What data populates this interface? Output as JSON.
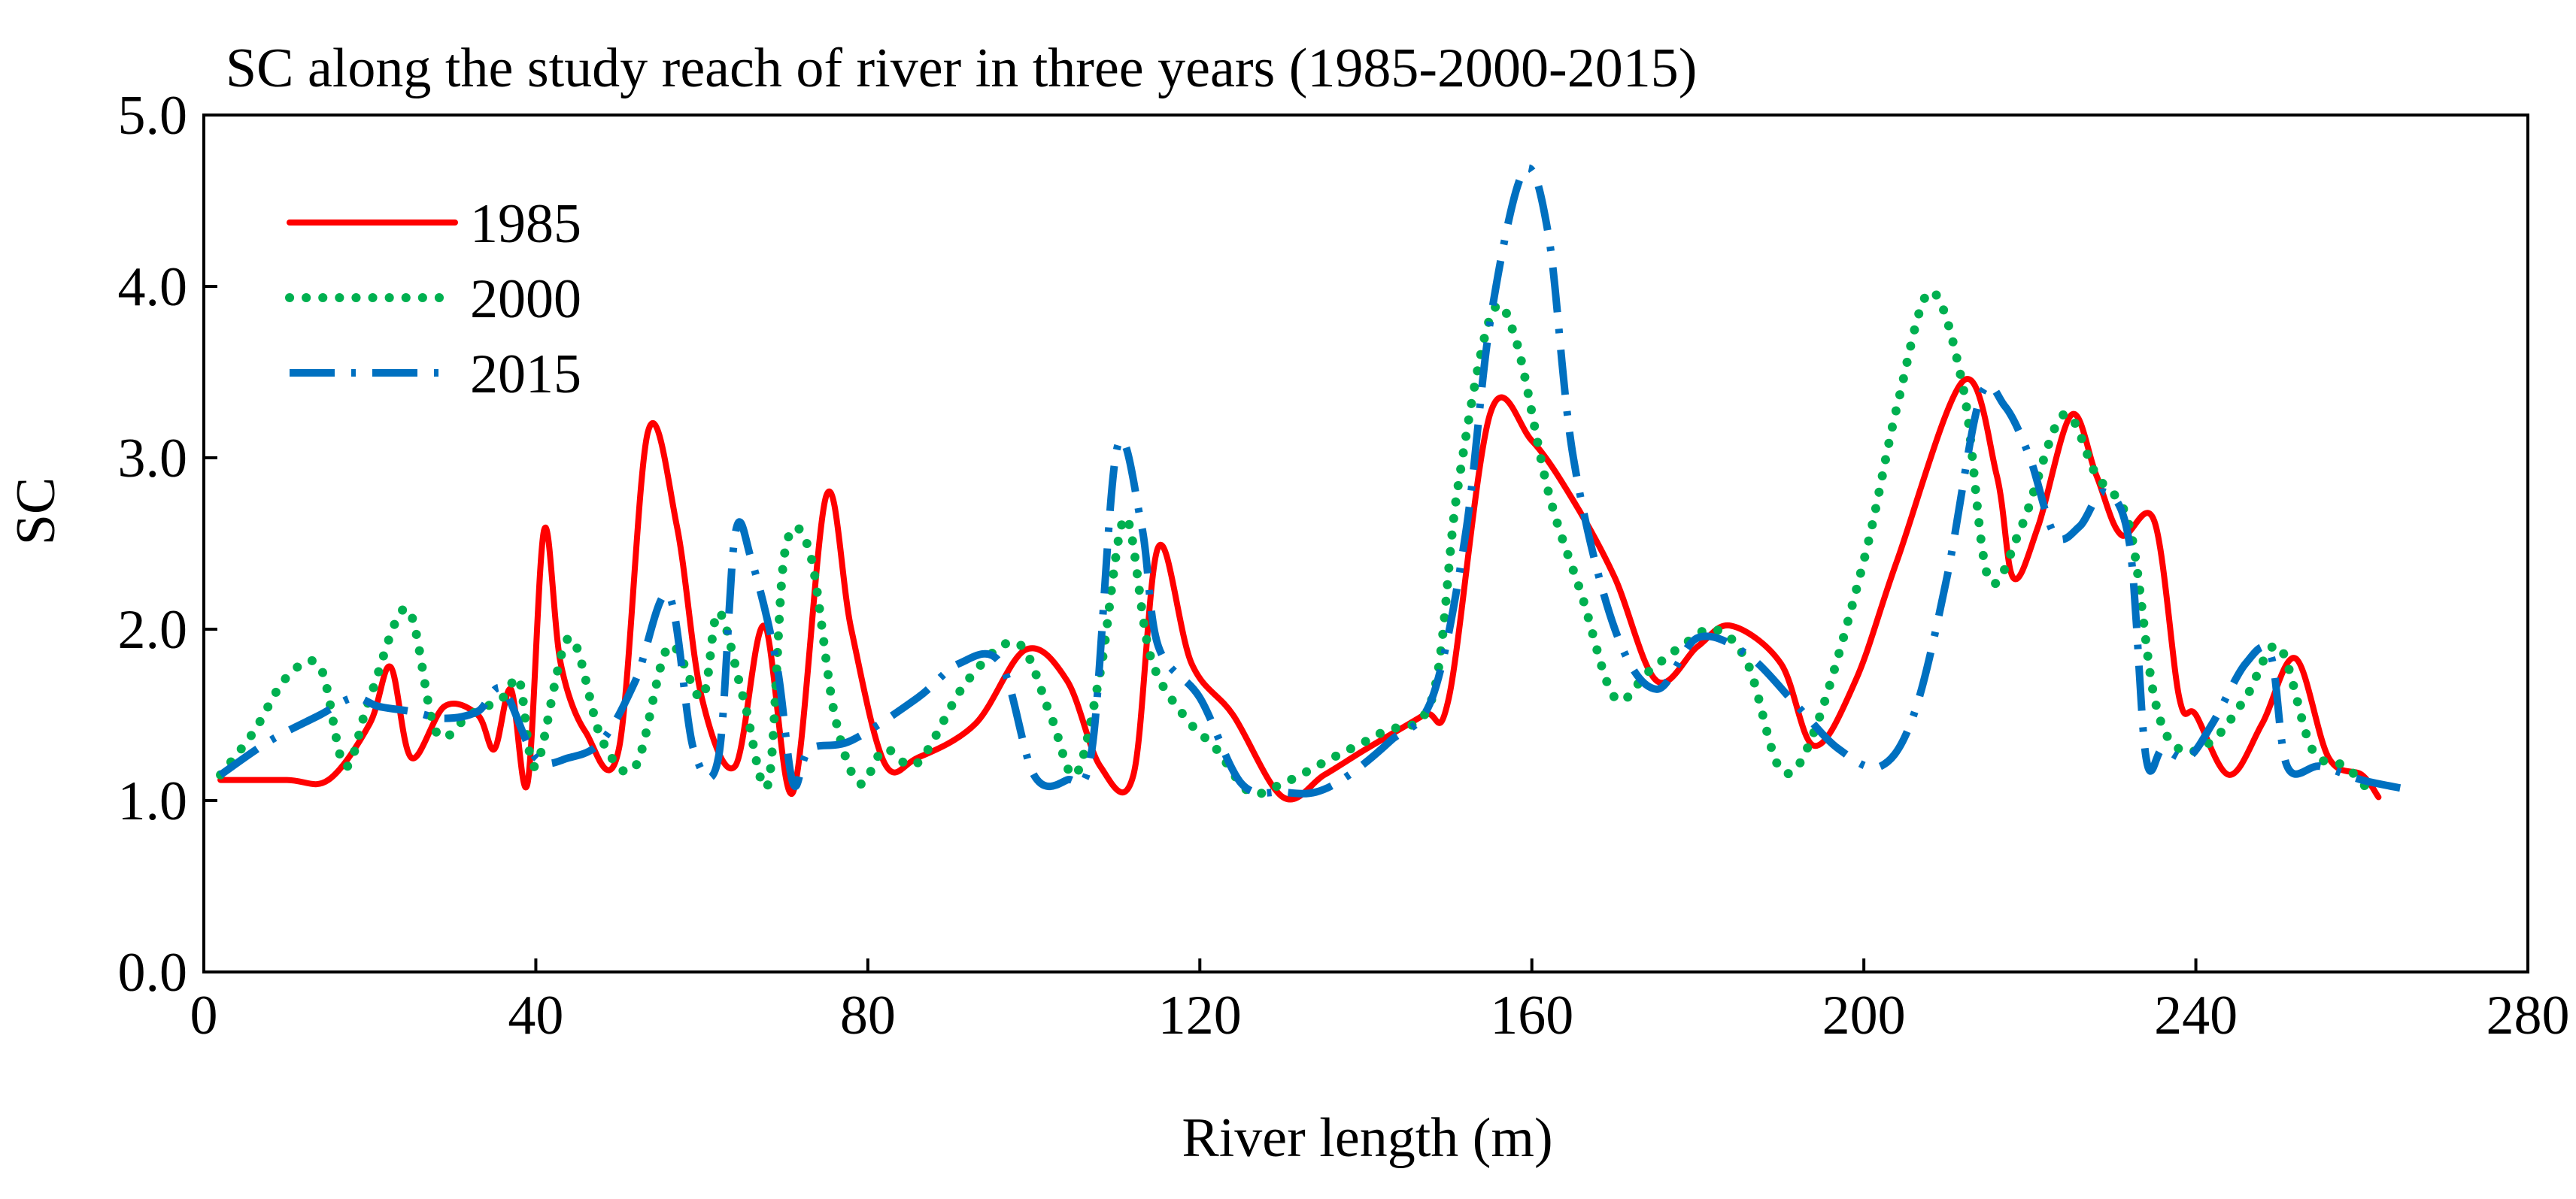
{
  "chart_data": {
    "type": "line",
    "title": "SC along the study reach of river in three years (1985-2000-2015)",
    "xlabel": "River length (m)",
    "ylabel": "SC",
    "xlim": [
      0,
      280
    ],
    "ylim": [
      0,
      5
    ],
    "xticks": [
      0,
      40,
      80,
      120,
      160,
      200,
      240,
      280
    ],
    "yticks": [
      0.0,
      1.0,
      2.0,
      3.0,
      4.0,
      5.0
    ],
    "ytick_labels": [
      "0.0",
      "1.0",
      "2.0",
      "3.0",
      "4.0",
      "5.0"
    ],
    "grid": false,
    "legend_position": "top-left",
    "series": [
      {
        "name": "1985",
        "color": "#ff0000",
        "style": "solid",
        "x": [
          2,
          10,
          15,
          20,
          22.5,
          25,
          29,
          33,
          35,
          37,
          39,
          41,
          43,
          46,
          50,
          53.5,
          57,
          60,
          64,
          67.5,
          71,
          75,
          78,
          82,
          86,
          93,
          99,
          104,
          108,
          112,
          115,
          119,
          124,
          130,
          135,
          140,
          147,
          150,
          155,
          160,
          165,
          170,
          175,
          180,
          184,
          190,
          194,
          199,
          204,
          212,
          216,
          218,
          221,
          225,
          228,
          231,
          235,
          238,
          240,
          244,
          248,
          252,
          256,
          260,
          262
        ],
        "values": [
          1.12,
          1.12,
          1.12,
          1.45,
          1.78,
          1.25,
          1.55,
          1.5,
          1.3,
          1.65,
          1.1,
          2.58,
          1.8,
          1.4,
          1.3,
          3.15,
          2.6,
          1.6,
          1.2,
          2.02,
          1.05,
          2.78,
          2.0,
          1.22,
          1.25,
          1.45,
          1.88,
          1.7,
          1.2,
          1.15,
          2.48,
          1.8,
          1.5,
          1.02,
          1.15,
          1.3,
          1.5,
          1.6,
          3.26,
          3.1,
          2.75,
          2.3,
          1.7,
          1.9,
          2.02,
          1.8,
          1.32,
          1.7,
          2.4,
          3.45,
          2.9,
          2.3,
          2.6,
          3.25,
          2.9,
          2.55,
          2.63,
          1.6,
          1.5,
          1.15,
          1.45,
          1.83,
          1.25,
          1.15,
          1.02
        ]
      },
      {
        "name": "2000",
        "color": "#00b050",
        "style": "dotted",
        "x": [
          2,
          6,
          10,
          14,
          17,
          20,
          24.5,
          28,
          32,
          36,
          38,
          40,
          44,
          48,
          52,
          56,
          60,
          62,
          65,
          68,
          70,
          73,
          76,
          79,
          82,
          86,
          92,
          98,
          102,
          105,
          108,
          111,
          114,
          118,
          122,
          126,
          130,
          136,
          142,
          148,
          151,
          155,
          158,
          162,
          166,
          170,
          174,
          178,
          182,
          186,
          190,
          194,
          200,
          204,
          208,
          212,
          215,
          219,
          224,
          228,
          232,
          235,
          238,
          242,
          246,
          250,
          254,
          258,
          261
        ],
        "values": [
          1.15,
          1.4,
          1.72,
          1.78,
          1.2,
          1.6,
          2.12,
          1.4,
          1.5,
          1.6,
          1.7,
          1.2,
          1.95,
          1.35,
          1.2,
          1.9,
          1.6,
          2.1,
          1.6,
          1.1,
          2.45,
          2.45,
          1.5,
          1.1,
          1.3,
          1.22,
          1.7,
          1.92,
          1.5,
          1.15,
          1.75,
          2.65,
          1.85,
          1.5,
          1.3,
          1.05,
          1.1,
          1.25,
          1.4,
          1.6,
          2.8,
          3.82,
          3.7,
          2.8,
          2.2,
          1.6,
          1.75,
          1.9,
          2.0,
          1.8,
          1.18,
          1.4,
          2.4,
          3.3,
          3.97,
          3.4,
          2.3,
          2.6,
          3.25,
          2.9,
          2.6,
          1.6,
          1.3,
          1.35,
          1.6,
          1.9,
          1.3,
          1.2,
          1.05
        ]
      },
      {
        "name": "2015",
        "color": "#0070c0",
        "style": "dashdot",
        "x": [
          2,
          8,
          14,
          18,
          21,
          25,
          29,
          33,
          36,
          40,
          44,
          48,
          52,
          56,
          59,
          62,
          64,
          66,
          69,
          71,
          73,
          78,
          86,
          91,
          96,
          100,
          104,
          107,
          110,
          113,
          115,
          120,
          125,
          130,
          134,
          138,
          143,
          148,
          152,
          155,
          159,
          162,
          165,
          170,
          175,
          180,
          186,
          192,
          197,
          202,
          206,
          210,
          214,
          217,
          220,
          223,
          226,
          229,
          232,
          234,
          236,
          239,
          242,
          246,
          249,
          251,
          255,
          260,
          265
        ],
        "values": [
          1.15,
          1.35,
          1.5,
          1.6,
          1.55,
          1.52,
          1.48,
          1.52,
          1.65,
          1.25,
          1.25,
          1.35,
          1.7,
          2.2,
          1.3,
          1.25,
          2.55,
          2.4,
          1.8,
          1.1,
          1.3,
          1.35,
          1.6,
          1.8,
          1.8,
          1.15,
          1.12,
          1.3,
          3.05,
          2.6,
          1.9,
          1.6,
          1.1,
          1.05,
          1.05,
          1.15,
          1.35,
          1.6,
          2.55,
          3.8,
          4.67,
          4.3,
          3.0,
          2.0,
          1.65,
          1.95,
          1.85,
          1.55,
          1.3,
          1.2,
          1.5,
          2.3,
          3.35,
          3.3,
          3.0,
          2.55,
          2.6,
          2.8,
          2.5,
          1.25,
          1.3,
          1.25,
          1.45,
          1.8,
          1.85,
          1.2,
          1.2,
          1.12,
          1.07
        ]
      }
    ]
  }
}
